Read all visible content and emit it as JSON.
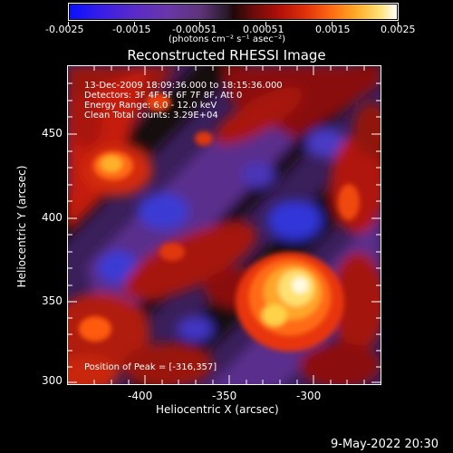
{
  "colorbar": {
    "tick_labels": [
      "-0.0025",
      "-0.0015",
      "-0.00051",
      "0.00051",
      "0.0015",
      "0.0025"
    ],
    "units": "(photons cm⁻² s⁻¹ asec⁻²)",
    "colors": [
      "#0a10ff",
      "#5a2bc8",
      "#2a1a2a",
      "#b01008",
      "#ff6a12",
      "#ffffff"
    ]
  },
  "plot": {
    "title": "Reconstructed RHESSI Image",
    "xlabel": "Heliocentric X (arcsec)",
    "ylabel": "Heliocentric Y (arcsec)",
    "x_ticks": [
      "-400",
      "-350",
      "-300"
    ],
    "y_ticks": [
      "450",
      "400",
      "350",
      "300"
    ],
    "x_range": [
      -448,
      -302
    ],
    "y_range": [
      298,
      490
    ],
    "info": {
      "line1": "13-Dec-2009 18:09:36.000 to 18:15:36.000",
      "line2": "Detectors: 3F 4F 5F 6F 7F 8F, Att 0",
      "line3": "Energy Range: 6.0 - 12.0 keV",
      "line4": "Clean    Total counts: 3.29E+04"
    },
    "peak": "Position of Peak = [-316,357]"
  },
  "footer": {
    "timestamp": "9-May-2022 20:30"
  }
}
